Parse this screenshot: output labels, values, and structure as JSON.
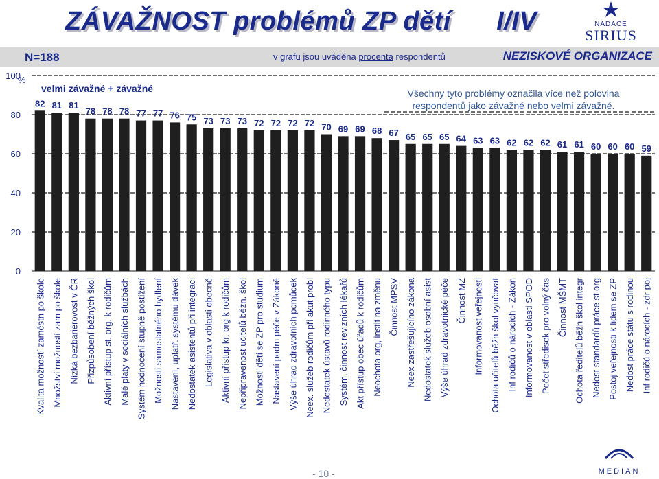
{
  "header": {
    "title": "ZÁVAŽNOST problémů ZP dětí      I/IV",
    "n_label": "N=188",
    "note_prefix": "v grafu jsou uváděna ",
    "note_link": "procenta",
    "note_suffix": " respondentů",
    "org": "NEZISKOVÉ ORGANIZACE",
    "logo_top": "NADACE",
    "logo_name": "SIRIUS",
    "footer_logo": "MEDIAN",
    "page": "- 10 -"
  },
  "colors": {
    "bar": "#1f1f1f",
    "title": "#1a2a8a",
    "callout": "#2f5597",
    "band": "#d9d9d9"
  },
  "chart_data": {
    "type": "bar",
    "series_label": "velmi závažné + závažné",
    "callout": [
      "Všechny tyto problémy označila více než polovina",
      "respondentů jako závažné nebo velmi závažné."
    ],
    "yunit": "%",
    "ylim": [
      0,
      100
    ],
    "yticks": [
      0,
      20,
      40,
      60,
      80,
      100
    ],
    "reference_line": 50,
    "categories": [
      "Kvalita možností zaměstn po škole",
      "Množství možností zam po škole",
      "Nízká bezbariérovost v ČR",
      "Přizpůsobení běžných škol",
      "Aktivní přístup st. org. k rodičům",
      "Malé platy v sociálních službách",
      "Systém hodnocení stupně postižení",
      "Možnosti samostatného bydlení",
      "Nastavení, uplatř. systému dávek",
      "Nedostatek asistentů při integraci",
      "Legislativa v oblasti obecně",
      "Aktivní přístup kr. org k rodičům",
      "Nepřipravenost učitelů běžn. škol",
      "Možnosti dětí se ZP pro studium",
      "Nastavení podm péče v Zákoně",
      "Výše úhrad zdravotních pomůcek",
      "Neex. služeb rodičům při akut probl",
      "Nedostatek ústavů rodinného typu",
      "Systém, činnost revizních lékařů",
      "Akt přístup obec úřadů k rodičům",
      "Neochota org, instit na změnu",
      "Činnost MPSV",
      "Neex zastřešujícího zákona",
      "Nedostatek služeb osobní asist",
      "Výše úhrad zdravotnické péče",
      "Činnost MZ",
      "Informovanost veřejnosti",
      "Ochota učitelů běžn škol vyučovat",
      "Inf rodičů o nárocích - Zákon",
      "Informovanost v oblasti SPOD",
      "Počet středisek pro volný čas",
      "Činnost MŠMT",
      "Ochota ředitelů běžn škol integr",
      "Nedost standardů práce st org",
      "Postoj veřejnosti k lidem se ZP",
      "Nedost práce státu s rodinou",
      "Inf rodičů o nárocích - zdr poj"
    ],
    "values": [
      82,
      81,
      81,
      78,
      78,
      78,
      77,
      77,
      76,
      75,
      73,
      73,
      73,
      72,
      72,
      72,
      72,
      70,
      69,
      69,
      68,
      67,
      65,
      65,
      65,
      64,
      63,
      63,
      62,
      62,
      62,
      61,
      61,
      60,
      60,
      60,
      59
    ],
    "labels": [
      "82",
      "81",
      "81",
      "78",
      "78",
      "78",
      "77",
      "77",
      "76",
      "75",
      "73",
      "73",
      "73",
      "72",
      "72",
      "72",
      "72",
      "70",
      "69",
      "69",
      "68",
      "67",
      "65",
      "65",
      "65",
      "64",
      "63",
      "63",
      "62",
      "62",
      "62",
      "61",
      "61",
      "60",
      "60",
      "60",
      "59"
    ]
  }
}
